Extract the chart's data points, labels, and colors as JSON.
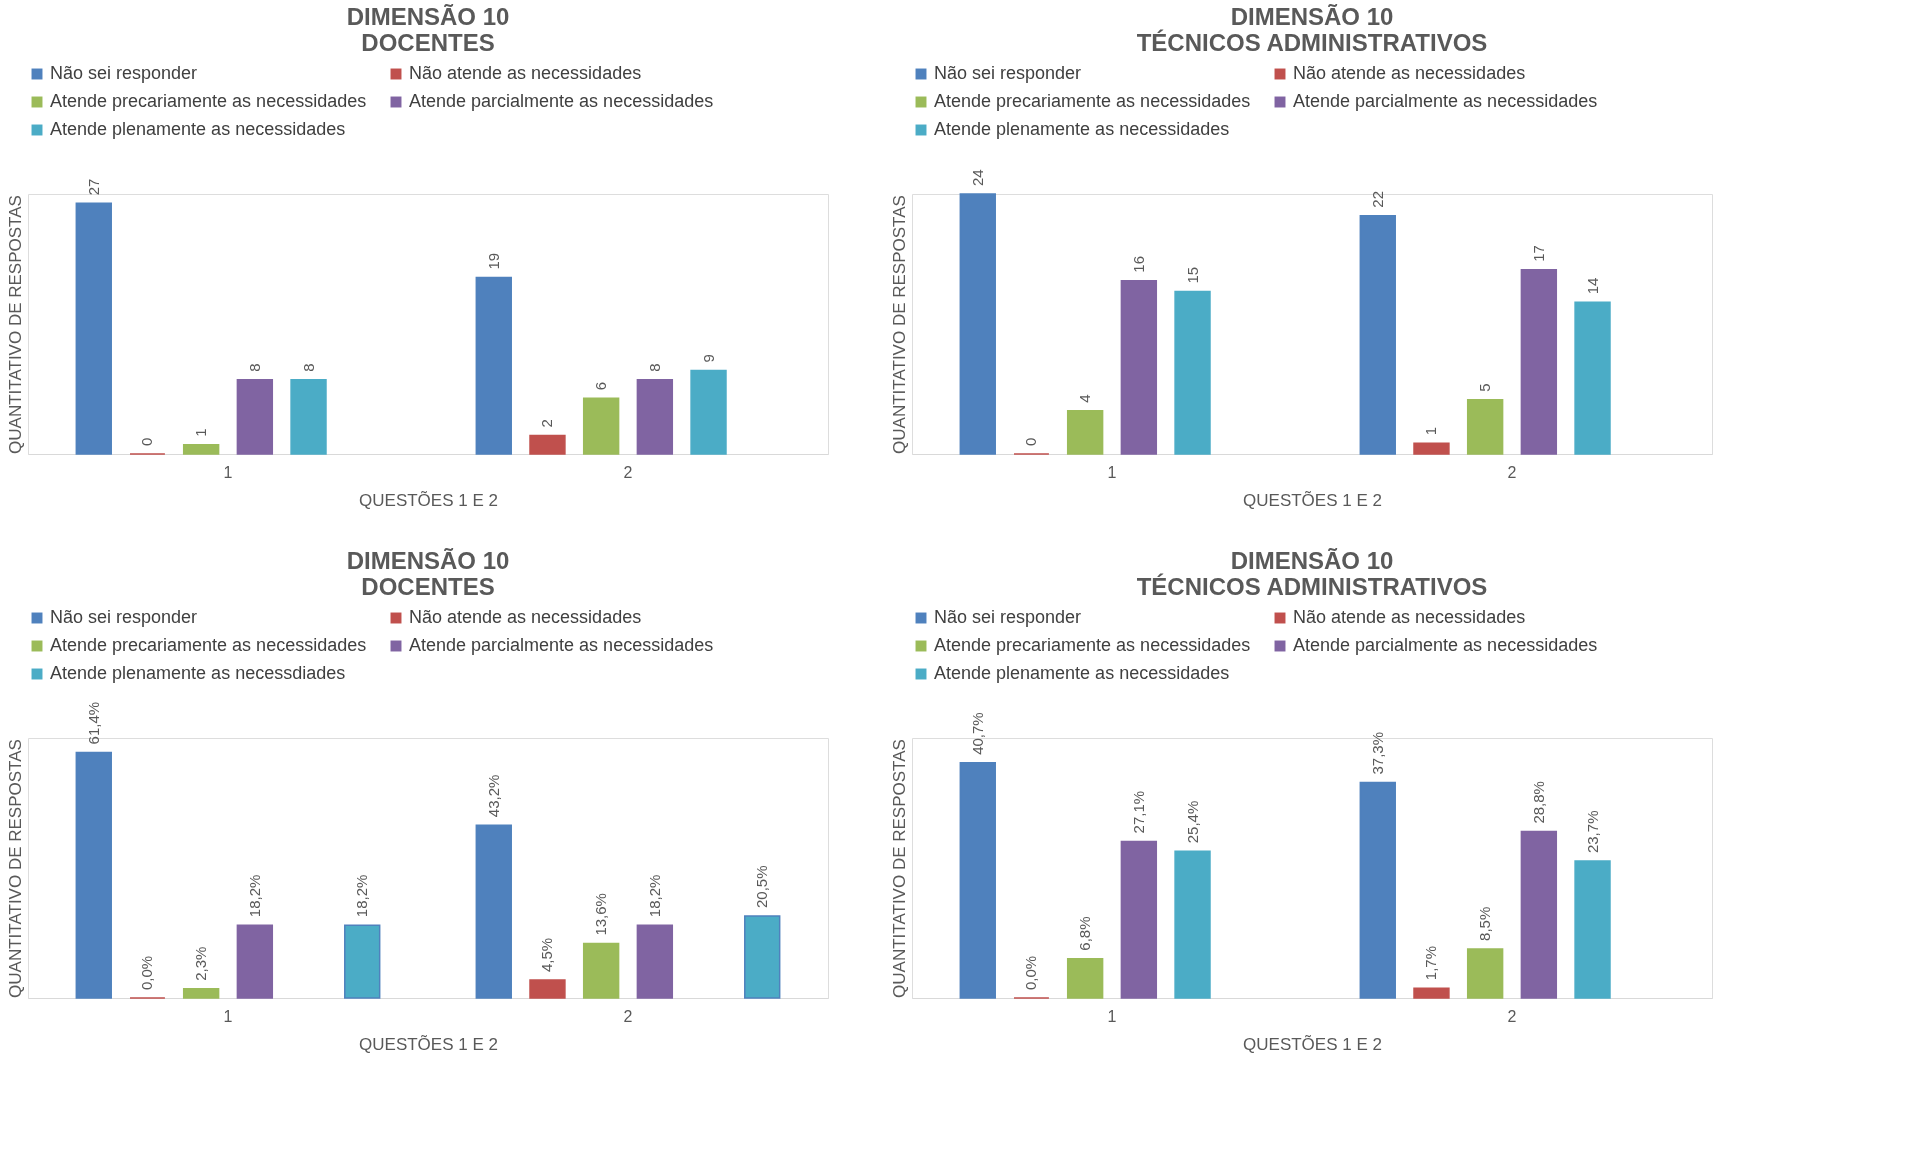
{
  "chart_data": [
    {
      "type": "bar",
      "title": "DIMENSÃO 10\nDOCENTES",
      "xlabel": "QUESTÕES 1 E 2",
      "ylabel": "QUANTITATIVO DE RESPOSTAS",
      "categories": [
        "1",
        "2"
      ],
      "legend": "top",
      "data_labels": true,
      "series": [
        {
          "name": "Não sei responder",
          "color": "#4f81bd",
          "values": [
            27,
            19
          ]
        },
        {
          "name": "Não atende as necessidades",
          "color": "#c0504d",
          "values": [
            0,
            2
          ]
        },
        {
          "name": "Atende precariamente as necessidades",
          "color": "#9bbb59",
          "values": [
            1,
            6
          ]
        },
        {
          "name": "Atende parcialmente as necessidades",
          "color": "#8064a2",
          "values": [
            8,
            8
          ]
        },
        {
          "name": "Atende plenamente as necessidades",
          "color": "#4bacc6",
          "values": [
            8,
            9
          ]
        }
      ]
    },
    {
      "type": "bar",
      "title": "DIMENSÃO 10\nTÉCNICOS ADMINISTRATIVOS",
      "xlabel": "QUESTÕES 1 E 2",
      "ylabel": "QUANTITATIVO DE RESPOSTAS",
      "categories": [
        "1",
        "2"
      ],
      "legend": "top",
      "data_labels": true,
      "series": [
        {
          "name": "Não sei responder",
          "color": "#4f81bd",
          "values": [
            24,
            22
          ]
        },
        {
          "name": "Não atende as necessidades",
          "color": "#c0504d",
          "values": [
            0,
            1
          ]
        },
        {
          "name": "Atende precariamente as necessidades",
          "color": "#9bbb59",
          "values": [
            4,
            5
          ]
        },
        {
          "name": "Atende parcialmente as necessidades",
          "color": "#8064a2",
          "values": [
            16,
            17
          ]
        },
        {
          "name": "Atende plenamente as necessidades",
          "color": "#4bacc6",
          "values": [
            15,
            14
          ]
        }
      ]
    },
    {
      "type": "bar",
      "title": "DIMENSÃO 10\nDOCENTES",
      "xlabel": "QUESTÕES 1 E 2",
      "ylabel": "QUANTITATIVO DE RESPOSTAS",
      "categories": [
        "1",
        "2"
      ],
      "legend": "top",
      "series": [
        {
          "name": "Não sei responder",
          "color": "#4f81bd",
          "values": [
            61.4,
            43.2
          ],
          "value_labels": [
            "61,4%",
            "43,2%"
          ]
        },
        {
          "name": "Não atende as necessidades",
          "color": "#c0504d",
          "values": [
            0.0,
            4.5
          ],
          "value_labels": [
            "0,0%",
            "4,5%"
          ]
        },
        {
          "name": "Atende precariamente as necessidades",
          "color": "#9bbb59",
          "values": [
            2.3,
            13.6
          ],
          "value_labels": [
            "2,3%",
            "13,6%"
          ]
        },
        {
          "name": "Atende parcialmente as necessidades",
          "color": "#8064a2",
          "values": [
            18.2,
            18.2
          ],
          "value_labels": [
            "18,2%",
            "18,2%"
          ]
        },
        {
          "name": "Atende plenamente as necessdiades",
          "color": "#4bacc6",
          "values": [
            18.2,
            20.5
          ],
          "value_labels": [
            "18,2%",
            "20,5%"
          ]
        }
      ]
    },
    {
      "type": "bar",
      "title": "DIMENSÃO 10\nTÉCNICOS ADMINISTRATIVOS",
      "xlabel": "QUESTÕES 1 E 2",
      "ylabel": "QUANTITATIVO DE RESPOSTAS",
      "categories": [
        "1",
        "2"
      ],
      "legend": "top",
      "series": [
        {
          "name": "Não sei responder",
          "color": "#4f81bd",
          "values": [
            40.7,
            37.3
          ],
          "value_labels": [
            "40,7%",
            "37,3%"
          ]
        },
        {
          "name": "Não atende as necessidades",
          "color": "#c0504d",
          "values": [
            0.0,
            1.7
          ],
          "value_labels": [
            "0,0%",
            "1,7%"
          ]
        },
        {
          "name": "Atende precariamente as necessidades",
          "color": "#9bbb59",
          "values": [
            6.8,
            8.5
          ],
          "value_labels": [
            "6,8%",
            "8,5%"
          ]
        },
        {
          "name": "Atende parcialmente as necessidades",
          "color": "#8064a2",
          "values": [
            27.1,
            28.8
          ],
          "value_labels": [
            "27,1%",
            "28,8%"
          ]
        },
        {
          "name": "Atende plenamente as necessidades",
          "color": "#4bacc6",
          "values": [
            25.4,
            23.7
          ],
          "value_labels": [
            "25,4%",
            "23,7%"
          ]
        }
      ]
    }
  ]
}
